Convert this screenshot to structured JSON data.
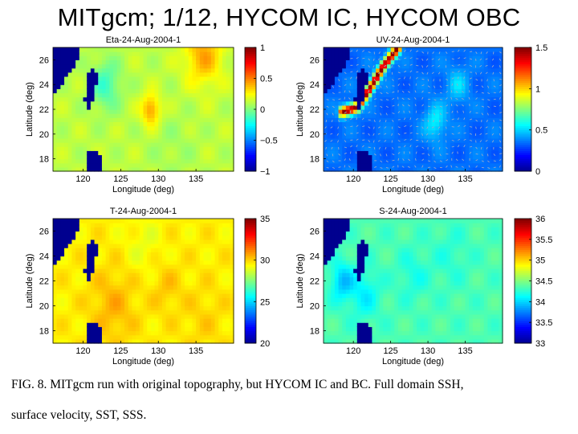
{
  "slide": {
    "title": "MITgcm; 1/12, HYCOM IC, HYCOM OBC"
  },
  "caption": {
    "line1": "FIG. 8.  MITgcm run with original topography, but HYCOM IC and BC. Full domain SSH,",
    "line2": "surface velocity, SST, SSS."
  },
  "colors": {
    "land": "#00008f",
    "colormap": [
      "#00008f",
      "#0000ff",
      "#0080ff",
      "#00ffff",
      "#80ff80",
      "#ffff00",
      "#ff8000",
      "#ff0000",
      "#800000"
    ],
    "velocity_arrows": "#9aa8c8"
  },
  "chart_data": [
    {
      "type": "heatmap",
      "panel": "ssh",
      "title": "Eta-24-Aug-2004-1",
      "xlabel": "Longitude (deg)",
      "ylabel": "Latitude (deg)",
      "xlim": [
        116,
        140
      ],
      "ylim": [
        17,
        27
      ],
      "xticks": [
        120,
        125,
        130,
        135
      ],
      "yticks": [
        18,
        20,
        22,
        24,
        26
      ],
      "colorbar": {
        "range": [
          -1,
          1
        ],
        "ticks": [
          1,
          0.5,
          0,
          -0.5,
          -1
        ],
        "labels": [
          "1",
          "0.5",
          "0",
          "−0.5",
          "−1"
        ]
      },
      "field": {
        "base": 0.12,
        "land_value": -1,
        "blobs": [
          {
            "x": 129,
            "y": 22,
            "r": 1.2,
            "v": 0.35
          },
          {
            "x": 136,
            "y": 26.5,
            "r": 2.5,
            "v": 0.3
          },
          {
            "x": 123,
            "y": 24,
            "r": 2.0,
            "v": -0.25
          },
          {
            "x": 132,
            "y": 19,
            "r": 3.0,
            "v": -0.05
          }
        ]
      },
      "grid": false,
      "legend": "colorbar-right"
    },
    {
      "type": "heatmap",
      "panel": "velocity",
      "title": "UV-24-Aug-2004-1",
      "xlabel": "Longitude (deg)",
      "ylabel": "Latitude (deg)",
      "xlim": [
        116,
        140
      ],
      "ylim": [
        17,
        27
      ],
      "xticks": [
        120,
        125,
        130,
        135
      ],
      "yticks": [
        18,
        20,
        22,
        24,
        26
      ],
      "colorbar": {
        "range": [
          0,
          1.5
        ],
        "ticks": [
          1.5,
          1,
          0.5,
          0
        ],
        "labels": [
          "1.5",
          "1",
          "0.5",
          "0"
        ]
      },
      "field": {
        "base": 0.35,
        "land_value": 0,
        "jet": [
          {
            "x": 118.5,
            "y": 21.8
          },
          {
            "x": 120.5,
            "y": 22.2
          },
          {
            "x": 122.0,
            "y": 23.5
          },
          {
            "x": 124.0,
            "y": 25.5
          },
          {
            "x": 126.0,
            "y": 27.0
          }
        ],
        "jet_peak": 1.5,
        "blobs": [
          {
            "x": 131,
            "y": 21,
            "r": 1.5,
            "v": 0.2
          },
          {
            "x": 134,
            "y": 24,
            "r": 1.5,
            "v": 0.15
          }
        ]
      },
      "vectors": true,
      "grid": false,
      "legend": "colorbar-right"
    },
    {
      "type": "heatmap",
      "panel": "sst",
      "title": "T-24-Aug-2004-1",
      "xlabel": "Longitude (deg)",
      "ylabel": "Latitude (deg)",
      "xlim": [
        116,
        140
      ],
      "ylim": [
        17,
        27
      ],
      "xticks": [
        120,
        125,
        130,
        135
      ],
      "yticks": [
        18,
        20,
        22,
        24,
        26
      ],
      "colorbar": {
        "range": [
          20,
          35
        ],
        "ticks": [
          35,
          30,
          25,
          20
        ],
        "labels": [
          "35",
          "30",
          "25",
          "20"
        ]
      },
      "field": {
        "base": 29.6,
        "land_value": 20,
        "blobs": [
          {
            "x": 124,
            "y": 20,
            "r": 3.0,
            "v": 0.9
          },
          {
            "x": 131,
            "y": 21.5,
            "r": 2.0,
            "v": 0.6
          },
          {
            "x": 128,
            "y": 25,
            "r": 2.5,
            "v": -0.5
          },
          {
            "x": 136,
            "y": 19,
            "r": 3.0,
            "v": 0.4
          }
        ]
      },
      "grid": false,
      "legend": "colorbar-right"
    },
    {
      "type": "heatmap",
      "panel": "sss",
      "title": "S-24-Aug-2004-1",
      "xlabel": "Longitude (deg)",
      "ylabel": "Latitude (deg)",
      "xlim": [
        116,
        140
      ],
      "ylim": [
        17,
        27
      ],
      "xticks": [
        120,
        125,
        130,
        135
      ],
      "yticks": [
        18,
        20,
        22,
        24,
        26
      ],
      "colorbar": {
        "range": [
          33,
          36
        ],
        "ticks": [
          36,
          35.5,
          35,
          34.5,
          34,
          33.5,
          33
        ],
        "labels": [
          "36",
          "35.5",
          "35",
          "34.5",
          "34",
          "33.5",
          "33"
        ]
      },
      "field": {
        "base": 34.35,
        "land_value": 33,
        "blobs": [
          {
            "x": 118.5,
            "y": 22,
            "r": 1.5,
            "v": -0.4
          },
          {
            "x": 121.5,
            "y": 21,
            "r": 2.0,
            "v": -0.25
          },
          {
            "x": 128,
            "y": 22.5,
            "r": 2.0,
            "v": -0.15
          },
          {
            "x": 133,
            "y": 24,
            "r": 2.5,
            "v": -0.1
          }
        ]
      },
      "grid": false,
      "legend": "colorbar-right"
    }
  ]
}
